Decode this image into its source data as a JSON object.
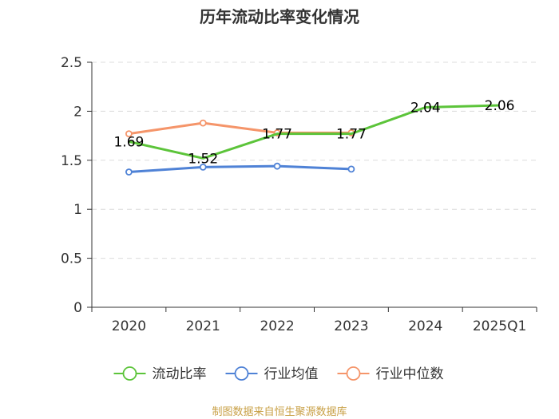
{
  "chart_data": {
    "type": "line",
    "title": "历年流动比率变化情况",
    "categories": [
      "2020",
      "2021",
      "2022",
      "2023",
      "2024",
      "2025Q1"
    ],
    "ylim": [
      0,
      2.5
    ],
    "yticks": [
      0,
      0.5,
      1,
      1.5,
      2,
      2.5
    ],
    "ytick_labels": [
      "0",
      "0.5",
      "1",
      "1.5",
      "2",
      "2.5"
    ],
    "grid": true,
    "legend_position": "bottom",
    "series": [
      {
        "name": "流动比率",
        "color": "#5cc43a",
        "values": [
          1.69,
          1.52,
          1.77,
          1.77,
          2.04,
          2.06
        ],
        "labels": [
          "1.69",
          "1.52",
          "1.77",
          "1.77",
          "2.04",
          "2.06"
        ],
        "show_markers": false
      },
      {
        "name": "行业均值",
        "color": "#4f82d6",
        "values": [
          1.38,
          1.43,
          1.44,
          1.41,
          null,
          null
        ],
        "show_markers": true
      },
      {
        "name": "行业中位数",
        "color": "#f5956a",
        "values": [
          1.77,
          1.88,
          1.78,
          1.78,
          null,
          null
        ],
        "show_markers": true
      }
    ],
    "source": "制图数据来自恒生聚源数据库"
  }
}
